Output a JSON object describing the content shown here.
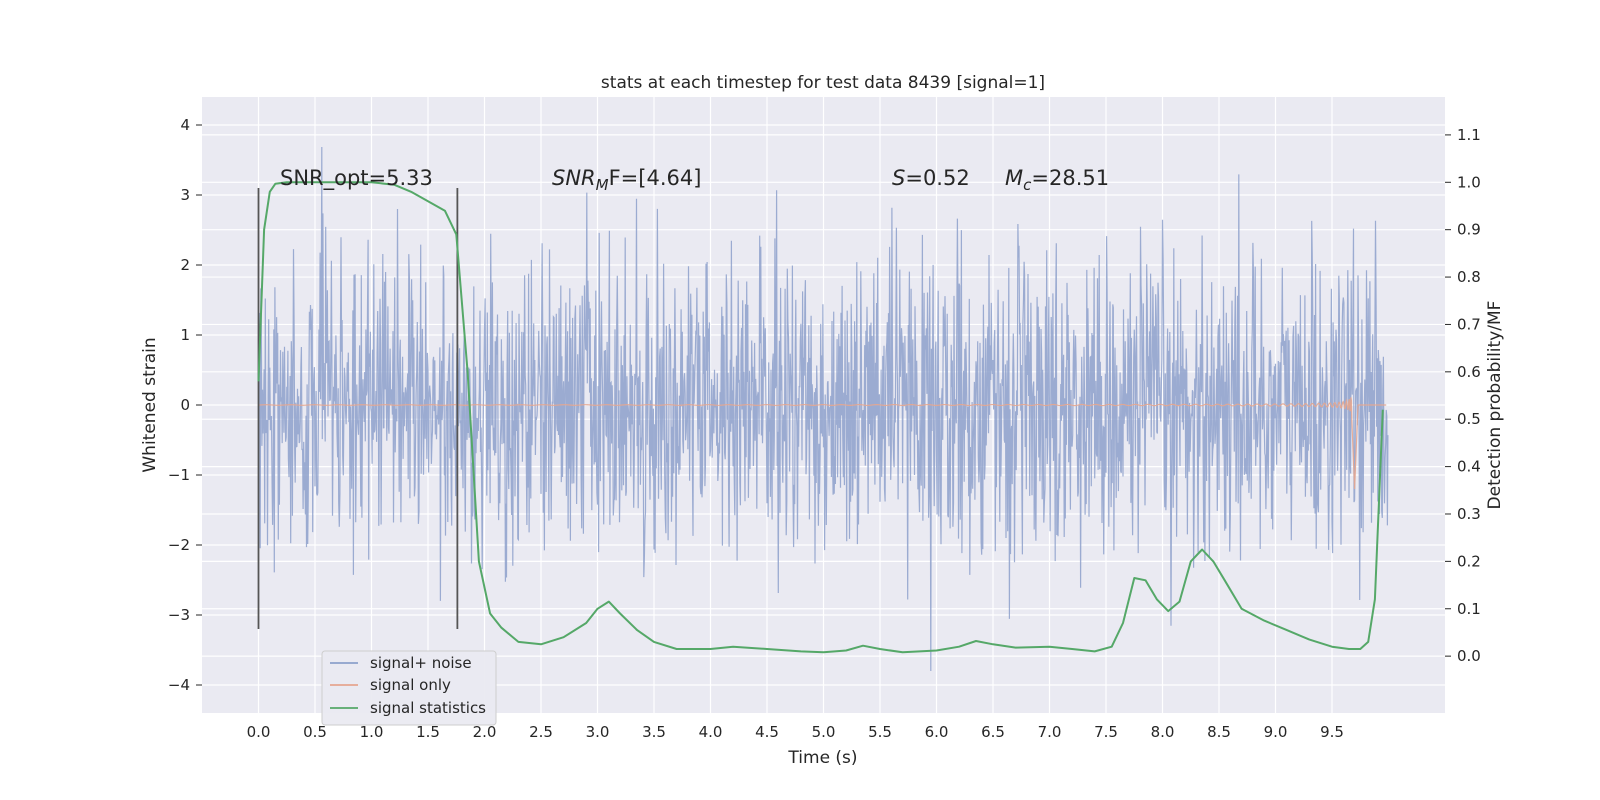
{
  "chart_data": {
    "type": "line",
    "title": "stats at each timestep for test data 8439 [signal=1]",
    "xlabel": "Time (s)",
    "ylabel": "Whitened strain",
    "y2label": "Detection probability/MF",
    "xlim": [
      -0.5,
      10.5
    ],
    "ylim": [
      -4.4,
      4.4
    ],
    "y2lim": [
      -0.12,
      1.18
    ],
    "xticks": [
      "0.0",
      "0.5",
      "1.0",
      "1.5",
      "2.0",
      "2.5",
      "3.0",
      "3.5",
      "4.0",
      "4.5",
      "5.0",
      "5.5",
      "6.0",
      "6.5",
      "7.0",
      "7.5",
      "8.0",
      "8.5",
      "9.0",
      "9.5"
    ],
    "yticks": [
      "4",
      "3",
      "2",
      "1",
      "0",
      "−1",
      "−2",
      "−3",
      "−4"
    ],
    "y2ticks": [
      "1.1",
      "1.0",
      "0.9",
      "0.8",
      "0.7",
      "0.6",
      "0.5",
      "0.4",
      "0.3",
      "0.2",
      "0.1",
      "0.0"
    ],
    "grid": true,
    "legend_position": "lower-left",
    "annotations": {
      "snr_opt": "SNR_opt=5.33",
      "snr_mf_prefix": "SNR",
      "snr_mf_sub": "M",
      "snr_mf_rest": "F=[4.64]",
      "s_prefix": "S",
      "s_rest": "=0.52",
      "mc_prefix": "M",
      "mc_sub": "c",
      "mc_rest": "=28.51"
    },
    "vertical_markers": [
      0.0,
      1.76
    ],
    "series": [
      {
        "name": "signal+ noise",
        "color": "#8da0cb",
        "axis": "left",
        "description_range": [
          -3.8,
          4.0
        ]
      },
      {
        "name": "signal only",
        "color": "#e5a68f",
        "axis": "left",
        "peak_time": 9.68
      },
      {
        "name": "signal statistics",
        "color": "#55a868",
        "axis": "right",
        "x": [
          0.0,
          0.05,
          0.1,
          0.15,
          0.25,
          0.4,
          0.6,
          0.8,
          1.0,
          1.2,
          1.35,
          1.5,
          1.65,
          1.75,
          1.85,
          1.95,
          2.05,
          2.15,
          2.3,
          2.5,
          2.7,
          2.9,
          3.0,
          3.1,
          3.2,
          3.35,
          3.5,
          3.7,
          4.0,
          4.2,
          4.5,
          4.8,
          5.0,
          5.2,
          5.35,
          5.5,
          5.7,
          6.0,
          6.2,
          6.35,
          6.5,
          6.7,
          7.0,
          7.2,
          7.4,
          7.55,
          7.65,
          7.75,
          7.85,
          7.95,
          8.05,
          8.15,
          8.25,
          8.35,
          8.45,
          8.55,
          8.7,
          8.9,
          9.1,
          9.3,
          9.5,
          9.65,
          9.75,
          9.82,
          9.88,
          9.95
        ],
        "values": [
          0.58,
          0.9,
          0.98,
          0.997,
          1.0,
          1.0,
          1.0,
          1.0,
          1.0,
          0.995,
          0.98,
          0.96,
          0.94,
          0.89,
          0.6,
          0.2,
          0.09,
          0.06,
          0.03,
          0.025,
          0.04,
          0.07,
          0.1,
          0.115,
          0.09,
          0.055,
          0.03,
          0.015,
          0.015,
          0.02,
          0.015,
          0.01,
          0.008,
          0.012,
          0.022,
          0.015,
          0.008,
          0.012,
          0.02,
          0.032,
          0.025,
          0.018,
          0.02,
          0.015,
          0.01,
          0.02,
          0.07,
          0.165,
          0.16,
          0.12,
          0.095,
          0.115,
          0.2,
          0.225,
          0.2,
          0.16,
          0.1,
          0.075,
          0.055,
          0.035,
          0.02,
          0.015,
          0.015,
          0.03,
          0.12,
          0.52
        ]
      }
    ]
  }
}
